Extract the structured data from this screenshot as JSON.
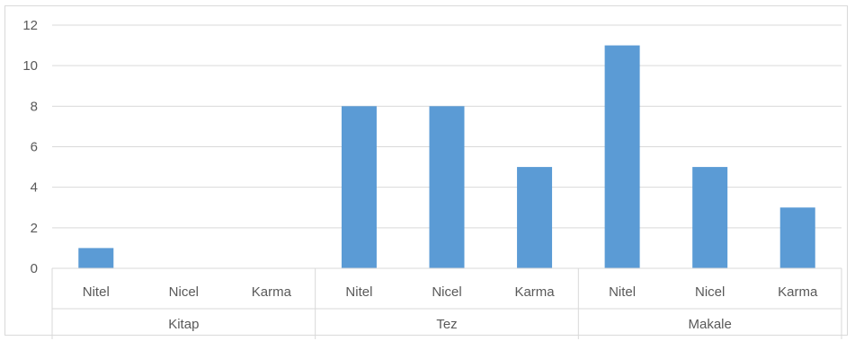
{
  "chart_data": {
    "type": "bar",
    "title": "",
    "xlabel": "",
    "ylabel": "",
    "ylim": [
      0,
      12
    ],
    "yticks": [
      0,
      2,
      4,
      6,
      8,
      10,
      12
    ],
    "grid": true,
    "legend": "none",
    "bar_color": "#5b9bd5",
    "groups": [
      {
        "label": "Kitap",
        "categories": [
          "Nitel",
          "Nicel",
          "Karma"
        ],
        "values": [
          1,
          0,
          0
        ]
      },
      {
        "label": "Tez",
        "categories": [
          "Nitel",
          "Nicel",
          "Karma"
        ],
        "values": [
          8,
          8,
          5
        ]
      },
      {
        "label": "Makale",
        "categories": [
          "Nitel",
          "Nicel",
          "Karma"
        ],
        "values": [
          11,
          5,
          3
        ]
      }
    ]
  }
}
